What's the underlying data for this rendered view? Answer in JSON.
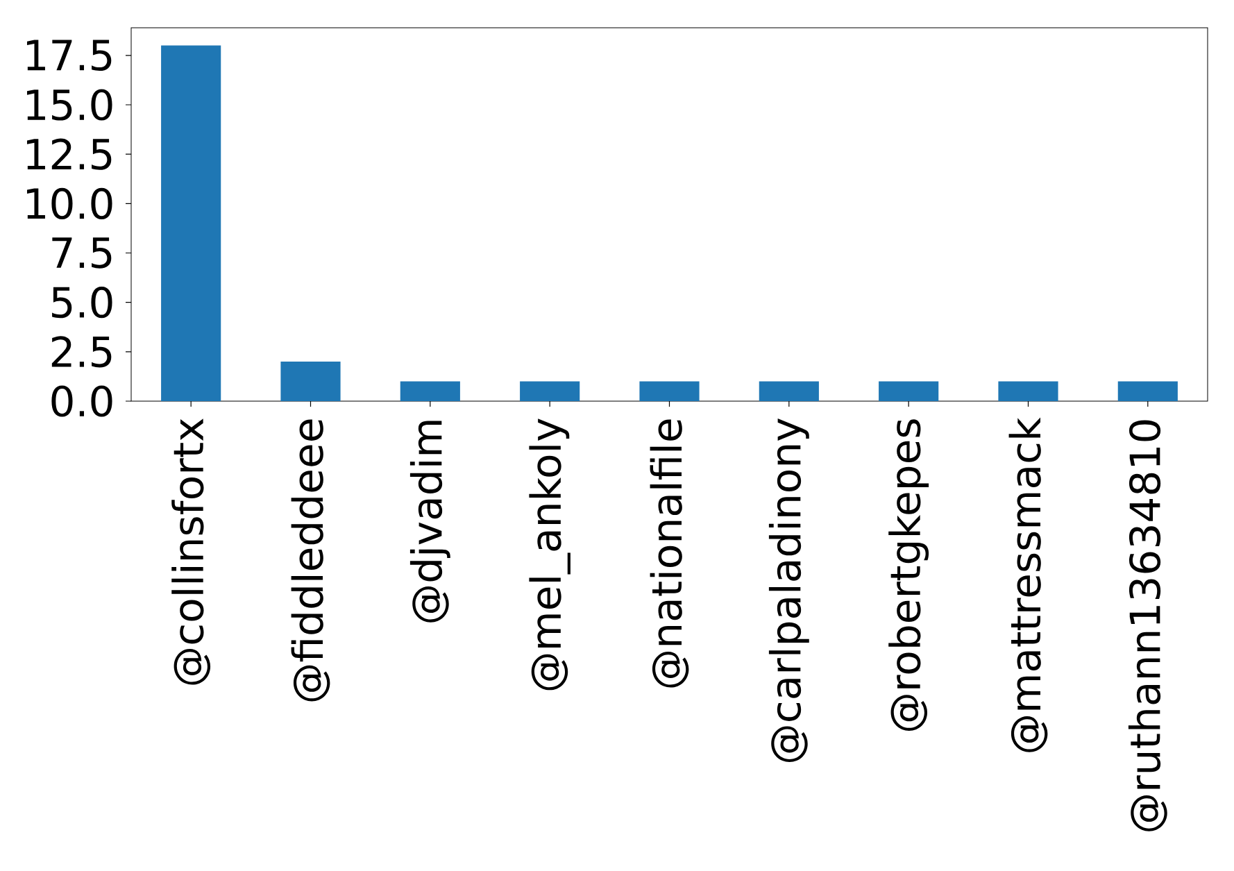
{
  "chart_data": {
    "type": "bar",
    "categories": [
      "@collinsfortx",
      "@fiddleddeee",
      "@djvadim",
      "@mel_ankoly",
      "@nationalfile",
      "@carlpaladinony",
      "@robertgkepes",
      "@mattressmack",
      "@ruthann13634810"
    ],
    "values": [
      18,
      2,
      1,
      1,
      1,
      1,
      1,
      1,
      1
    ],
    "color": "#1f77b4",
    "ylim": [
      0,
      18.9
    ],
    "yticks": [
      {
        "value": 0,
        "label": "0.0"
      },
      {
        "value": 2.5,
        "label": "2.5"
      },
      {
        "value": 5,
        "label": "5.0"
      },
      {
        "value": 7.5,
        "label": "7.5"
      },
      {
        "value": 10,
        "label": "10.0"
      },
      {
        "value": 12.5,
        "label": "12.5"
      },
      {
        "value": 15,
        "label": "15.0"
      },
      {
        "value": 17.5,
        "label": "17.5"
      }
    ],
    "grid": false
  }
}
